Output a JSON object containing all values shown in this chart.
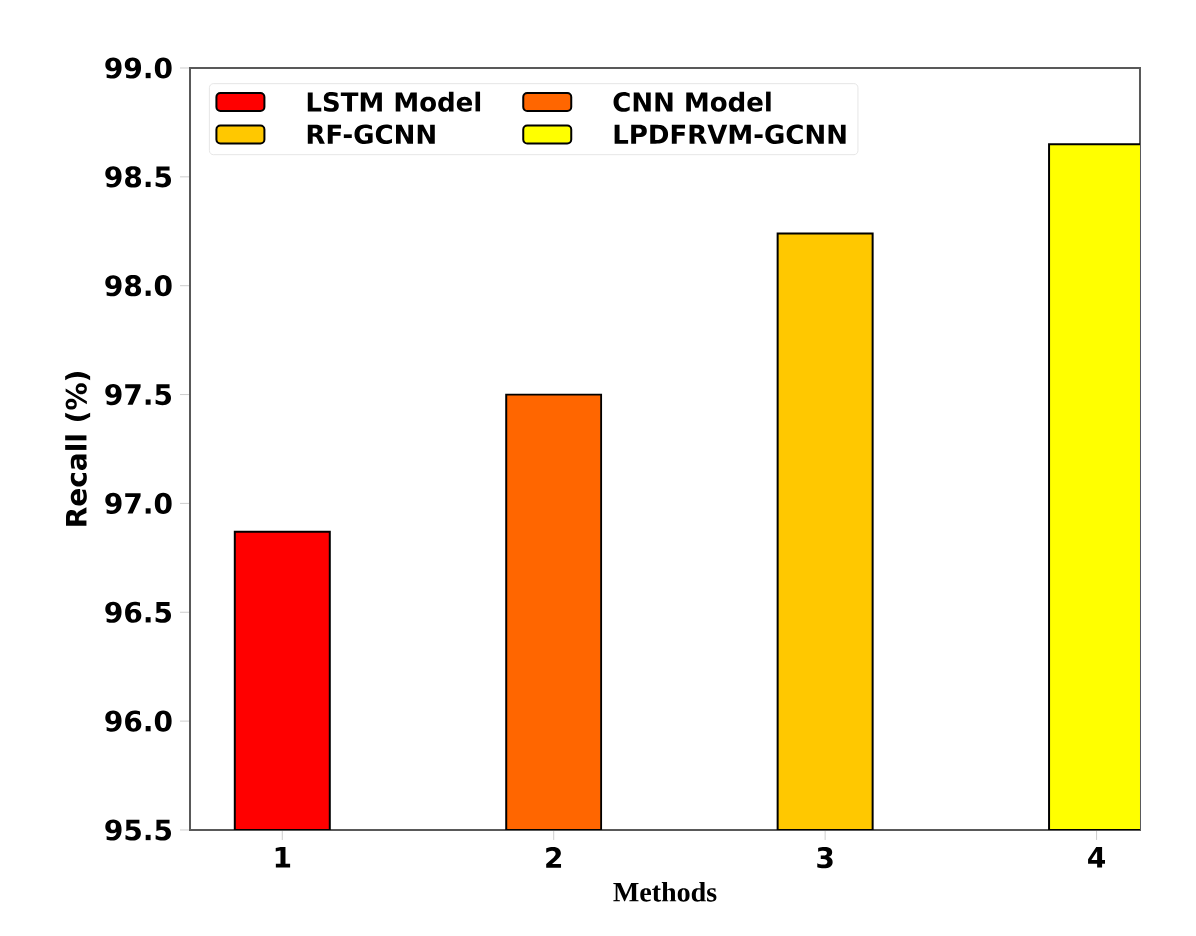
{
  "chart_data": {
    "type": "bar",
    "xlabel": "Methods",
    "ylabel": "Recall (%)",
    "categories": [
      "1",
      "2",
      "3",
      "4"
    ],
    "series": [
      {
        "name": "LSTM Model",
        "color": "#ff0000",
        "values": [
          96.87,
          null,
          null,
          null
        ]
      },
      {
        "name": "CNN Model",
        "color": "#ff6600",
        "values": [
          null,
          97.5,
          null,
          null
        ]
      },
      {
        "name": "RF-GCNN",
        "color": "#ffc800",
        "values": [
          null,
          null,
          98.24,
          null
        ]
      },
      {
        "name": "LPDFRVM-GCNN",
        "color": "#ffff00",
        "values": [
          null,
          null,
          null,
          98.65
        ]
      }
    ],
    "ylim": [
      95.5,
      99.0
    ],
    "yticks": [
      95.5,
      {
        "value": 96,
        "label": "96.0"
      },
      96.5,
      {
        "value": 97,
        "label": "97.0"
      },
      97.5,
      {
        "value": 98,
        "label": "98.0"
      },
      98.5,
      {
        "value": 99,
        "label": "99.0"
      }
    ],
    "legend": "top left"
  }
}
